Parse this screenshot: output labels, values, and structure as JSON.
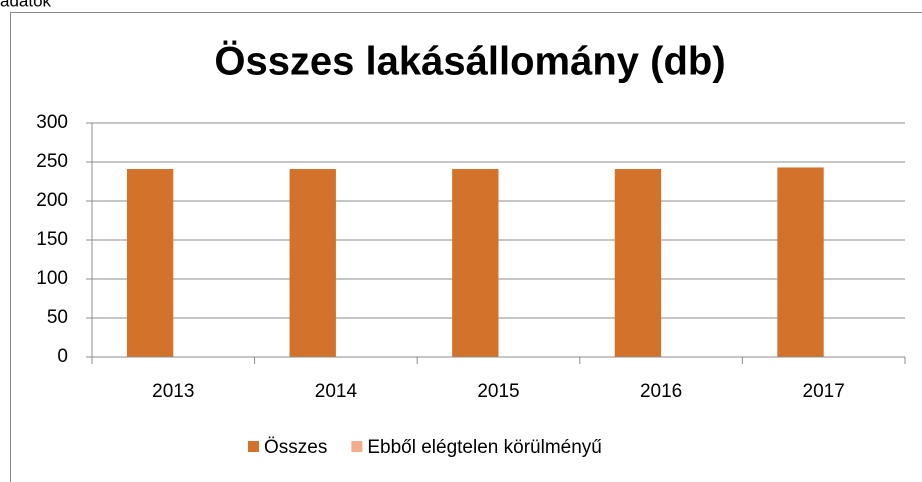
{
  "page_label": "adatok",
  "chart_data": {
    "type": "bar",
    "title": "Összes lakásállomány (db)",
    "categories": [
      "2013",
      "2014",
      "2015",
      "2016",
      "2017"
    ],
    "series": [
      {
        "name": "Összes",
        "color": "#d2722b",
        "values": [
          241,
          241,
          241,
          241,
          243
        ]
      },
      {
        "name": "Ebből elégtelen körülményű",
        "color": "#f2ae8c",
        "values": [
          0,
          0,
          0,
          0,
          0
        ]
      }
    ],
    "ylim": [
      0,
      300
    ],
    "yticks": [
      0,
      50,
      100,
      150,
      200,
      250,
      300
    ],
    "grid": true,
    "legend": "bottom"
  }
}
